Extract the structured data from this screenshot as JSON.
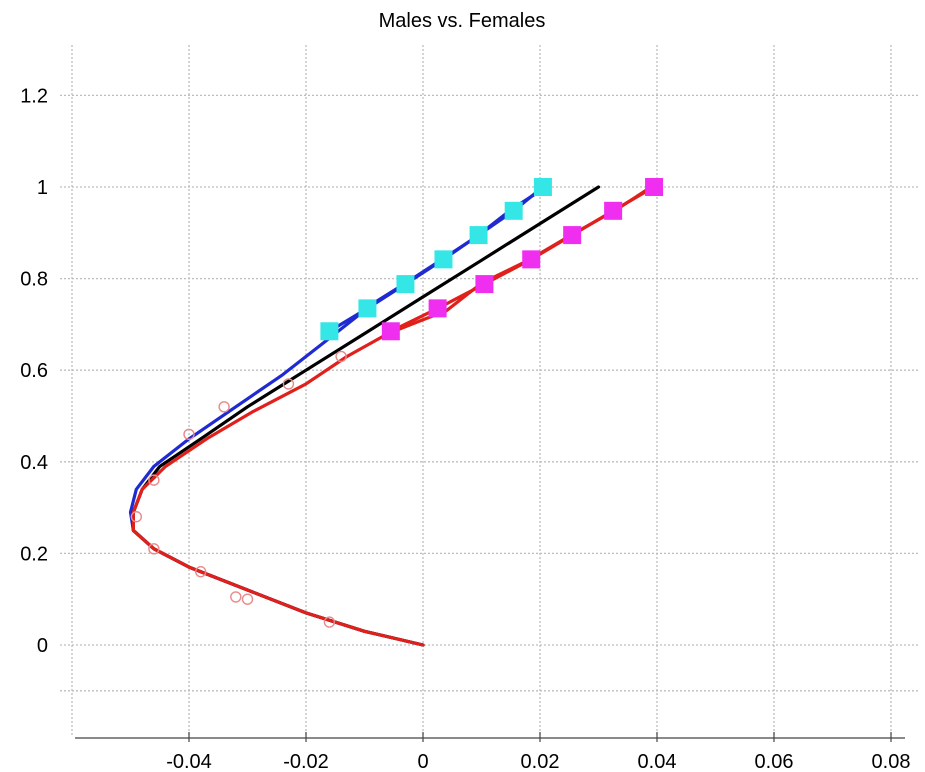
{
  "chart_data": {
    "type": "line",
    "title": "Males vs. Females",
    "xlabel": "",
    "ylabel": "",
    "xlim": [
      -0.077,
      0.08
    ],
    "ylim": [
      -0.2,
      1.3
    ],
    "xticks": [
      "-0.04",
      "-0.02",
      "0",
      "0.02",
      "0.04",
      "0.06",
      "0.08"
    ],
    "yticks": [
      "0",
      "0.2",
      "0.4",
      "0.6",
      "0.8",
      "1",
      "1.2"
    ],
    "xtick_values": [
      -0.04,
      -0.02,
      0,
      0.02,
      0.04,
      0.06,
      0.08
    ],
    "ytick_values": [
      0,
      0.2,
      0.4,
      0.6,
      0.8,
      1.0,
      1.2
    ],
    "grid": true,
    "series": [
      {
        "color": "#1f2bd1",
        "style": "line",
        "x": [
          0.0,
          -0.01,
          -0.02,
          -0.03,
          -0.04,
          -0.046,
          -0.0495,
          -0.05,
          -0.049,
          -0.046,
          -0.04,
          -0.032,
          -0.024,
          -0.017,
          -0.012,
          -0.008,
          -0.003,
          0.003,
          0.009,
          0.015,
          0.021
        ],
        "y": [
          0.0,
          0.03,
          0.07,
          0.12,
          0.17,
          0.21,
          0.25,
          0.29,
          0.34,
          0.39,
          0.45,
          0.52,
          0.59,
          0.66,
          0.71,
          0.75,
          0.79,
          0.84,
          0.89,
          0.95,
          1.0
        ]
      },
      {
        "color": "#000000",
        "style": "line",
        "x": [
          0.0,
          -0.01,
          -0.02,
          -0.03,
          -0.04,
          -0.046,
          -0.0495,
          -0.0495,
          -0.048,
          -0.045,
          -0.038,
          -0.03,
          -0.02,
          -0.01,
          0.0,
          0.01,
          0.02,
          0.03
        ],
        "y": [
          0.0,
          0.03,
          0.07,
          0.12,
          0.17,
          0.21,
          0.25,
          0.29,
          0.34,
          0.39,
          0.45,
          0.52,
          0.6,
          0.68,
          0.76,
          0.84,
          0.92,
          1.0
        ]
      },
      {
        "color": "#e0201b",
        "style": "line",
        "x": [
          0.0,
          -0.01,
          -0.02,
          -0.03,
          -0.04,
          -0.046,
          -0.0495,
          -0.0495,
          -0.048,
          -0.044,
          -0.037,
          -0.029,
          -0.02,
          -0.013,
          -0.006,
          0.0,
          0.004,
          0.01,
          0.018,
          0.026,
          0.033,
          0.039
        ],
        "y": [
          0.0,
          0.03,
          0.07,
          0.12,
          0.17,
          0.21,
          0.25,
          0.29,
          0.34,
          0.39,
          0.45,
          0.51,
          0.57,
          0.63,
          0.68,
          0.71,
          0.73,
          0.79,
          0.84,
          0.9,
          0.95,
          1.0
        ]
      },
      {
        "color": "#35e6e6",
        "style": "square",
        "x": [
          -0.016,
          -0.0095,
          -0.003,
          0.0035,
          0.0095,
          0.0155,
          0.0205
        ],
        "y": [
          0.685,
          0.735,
          0.788,
          0.842,
          0.895,
          0.948,
          1.0
        ]
      },
      {
        "color": "#f02ef0",
        "style": "square",
        "x": [
          -0.0055,
          0.0025,
          0.0105,
          0.0185,
          0.0255,
          0.0325,
          0.0395
        ],
        "y": [
          0.685,
          0.735,
          0.788,
          0.842,
          0.895,
          0.948,
          1.0
        ]
      },
      {
        "color": "#e88a8a",
        "style": "circle",
        "x": [
          -0.016,
          -0.03,
          -0.032,
          -0.038,
          -0.046,
          -0.049,
          -0.046,
          -0.04,
          -0.034,
          -0.023,
          -0.014
        ],
        "y": [
          0.05,
          0.1,
          0.105,
          0.16,
          0.21,
          0.28,
          0.36,
          0.46,
          0.52,
          0.57,
          0.63
        ]
      }
    ]
  }
}
